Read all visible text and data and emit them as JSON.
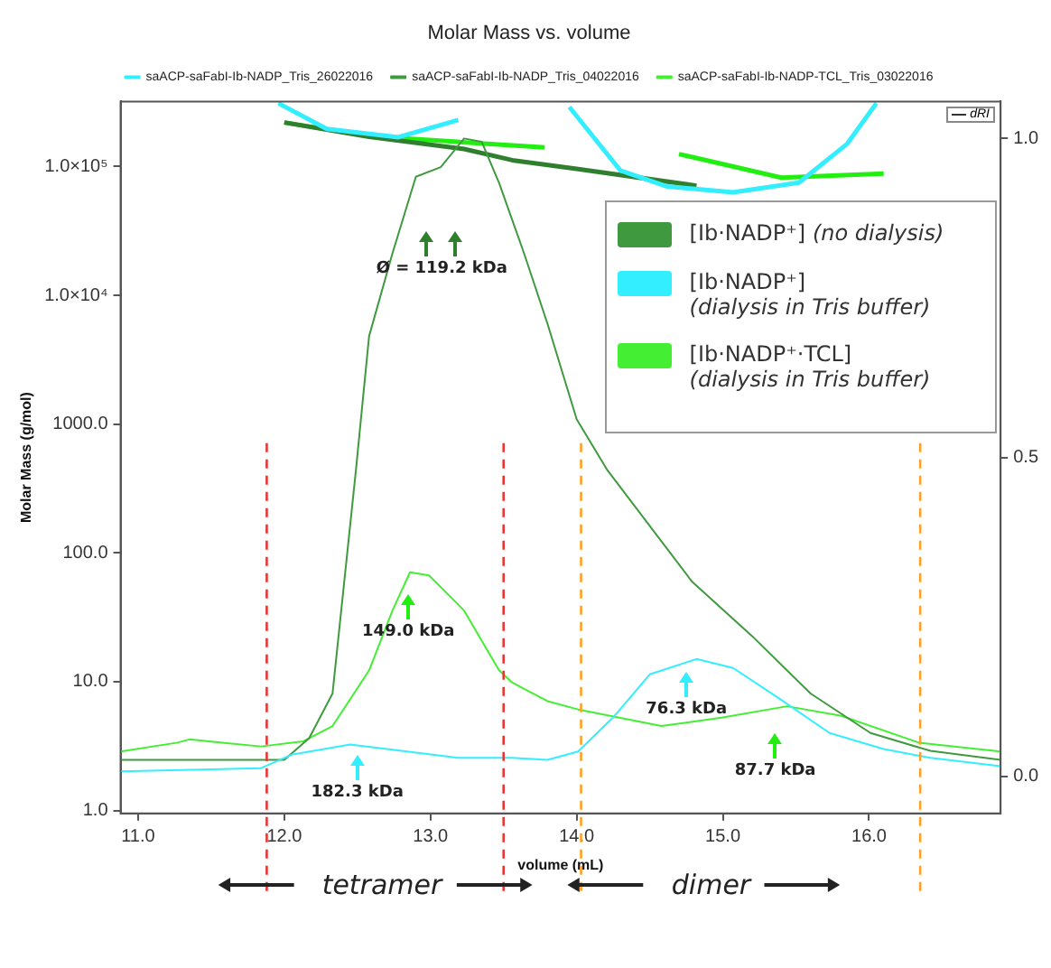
{
  "chart_data": {
    "type": "line",
    "title": "Molar Mass vs. volume",
    "xlabel": "volume (mL)",
    "ylabel": "Molar Mass (g/mol)",
    "log": "y",
    "legend": "top",
    "marker": "none",
    "line_style": "solid",
    "xlim": [
      10.88,
      16.9
    ],
    "xticks": [
      {
        "value": 11,
        "label": "11.0"
      },
      {
        "value": 12,
        "label": "12.0"
      },
      {
        "value": 13,
        "label": "13.0"
      },
      {
        "value": 14,
        "label": "14.0"
      },
      {
        "value": 15,
        "label": "15.0"
      },
      {
        "value": 16,
        "label": "16.0"
      }
    ],
    "ylim": [
      0.95,
      320000
    ],
    "yticks": [
      {
        "value": 1,
        "label": "1.0"
      },
      {
        "value": 10,
        "label": "10.0"
      },
      {
        "value": 100,
        "label": "100.0"
      },
      {
        "value": 1000,
        "label": "1000.0"
      },
      {
        "value": 10000,
        "label": "1.0×10⁴"
      },
      {
        "value": 100000,
        "label": "1.0×10⁵"
      }
    ],
    "y2lim": [
      -0.058,
      1.058
    ],
    "y2ticks": [
      {
        "value": 0,
        "label": "0.0"
      },
      {
        "value": 0.5,
        "label": "0.5"
      },
      {
        "value": 1,
        "label": "1.0"
      }
    ],
    "series": [
      {
        "name": "saACP-saFabI-Ib-NADP_Tris_26022016",
        "type": "line",
        "axis": "y2",
        "color": "#33eeff",
        "x": [
          10.88,
          11.84,
          12.05,
          12.45,
          12.74,
          13.19,
          13.56,
          13.8,
          14.01,
          14.26,
          14.5,
          14.82,
          15.07,
          15.4,
          15.73,
          16.1,
          16.42,
          16.9
        ],
        "values": [
          0.008,
          0.013,
          0.034,
          0.05,
          0.042,
          0.029,
          0.029,
          0.026,
          0.039,
          0.095,
          0.16,
          0.184,
          0.17,
          0.12,
          0.068,
          0.043,
          0.029,
          0.016
        ]
      },
      {
        "name": "saACP-saFabI-Ib-NADP_Tris_04022016",
        "type": "line",
        "axis": "y2",
        "color": "#3f9a3f",
        "x": [
          10.88,
          12.0,
          12.17,
          12.33,
          12.49,
          12.58,
          12.74,
          12.9,
          13.07,
          13.23,
          13.35,
          13.47,
          13.64,
          13.8,
          14.0,
          14.21,
          14.79,
          15.2,
          15.6,
          16.01,
          16.42,
          16.9
        ],
        "values": [
          0.026,
          0.026,
          0.06,
          0.13,
          0.48,
          0.69,
          0.82,
          0.94,
          0.955,
          1.0,
          0.995,
          0.93,
          0.82,
          0.71,
          0.56,
          0.48,
          0.305,
          0.22,
          0.13,
          0.068,
          0.04,
          0.026
        ]
      },
      {
        "name": "saACP-saFabI-Ib-NADP-TCL_Tris_03022016",
        "type": "line",
        "axis": "y2",
        "color": "#44ee33",
        "x": [
          10.88,
          11.27,
          11.35,
          11.84,
          12.13,
          12.33,
          12.58,
          12.74,
          12.86,
          12.99,
          13.23,
          13.47,
          13.56,
          13.8,
          14.01,
          14.58,
          14.99,
          15.44,
          15.81,
          16.34,
          16.9
        ],
        "values": [
          0.039,
          0.053,
          0.058,
          0.047,
          0.055,
          0.079,
          0.166,
          0.26,
          0.32,
          0.315,
          0.26,
          0.166,
          0.147,
          0.118,
          0.105,
          0.079,
          0.092,
          0.11,
          0.095,
          0.053,
          0.039
        ]
      },
      {
        "type": "line",
        "color": "#33eeff",
        "x": [
          11.96,
          12.29,
          12.78,
          13.19,
          13.5,
          13.95,
          14.3,
          14.62,
          15.07,
          15.52,
          15.85,
          16.05
        ],
        "values": [
          310000,
          196000,
          169000,
          230000,
          null,
          290000,
          93000,
          70000,
          63000,
          75000,
          150000,
          310000
        ]
      },
      {
        "type": "line",
        "color": "#2f7f2f",
        "x": [
          12.0,
          12.58,
          13.23,
          13.56,
          14.0,
          14.82
        ],
        "values": [
          220000,
          170000,
          137000,
          112000,
          96000,
          71000
        ]
      },
      {
        "type": "line",
        "color": "#22ee11",
        "x": [
          12.0,
          12.58,
          13.78,
          14.2,
          14.7,
          15.4,
          16.1
        ],
        "values": [
          220000,
          172000,
          141000,
          null,
          125000,
          82000,
          88000
        ]
      }
    ],
    "ref_lines": [
      {
        "axis": "x",
        "value": 11.88,
        "color": "#ee3333",
        "line_style": "dashed"
      },
      {
        "axis": "x",
        "value": 13.5,
        "color": "#ee3333",
        "line_style": "dashed"
      },
      {
        "axis": "x",
        "value": 14.03,
        "color": "#ffa020",
        "line_style": "dashed"
      },
      {
        "axis": "x",
        "value": 16.35,
        "color": "#ffa020",
        "line_style": "dashed"
      }
    ],
    "annotations": [
      "[Ib·NADP⁺] (no dialysis)",
      "[Ib·NADP⁺] (dialysis in Tris buffer)",
      "[Ib·NADP⁺·TCL] (dialysis in Tris buffer)",
      "dRI",
      "Ø = 119.2 kDa",
      "149.0 kDa",
      "182.3 kDa",
      "76.3 kDa",
      "87.7 kDa",
      "tetramer",
      "dimer"
    ]
  }
}
